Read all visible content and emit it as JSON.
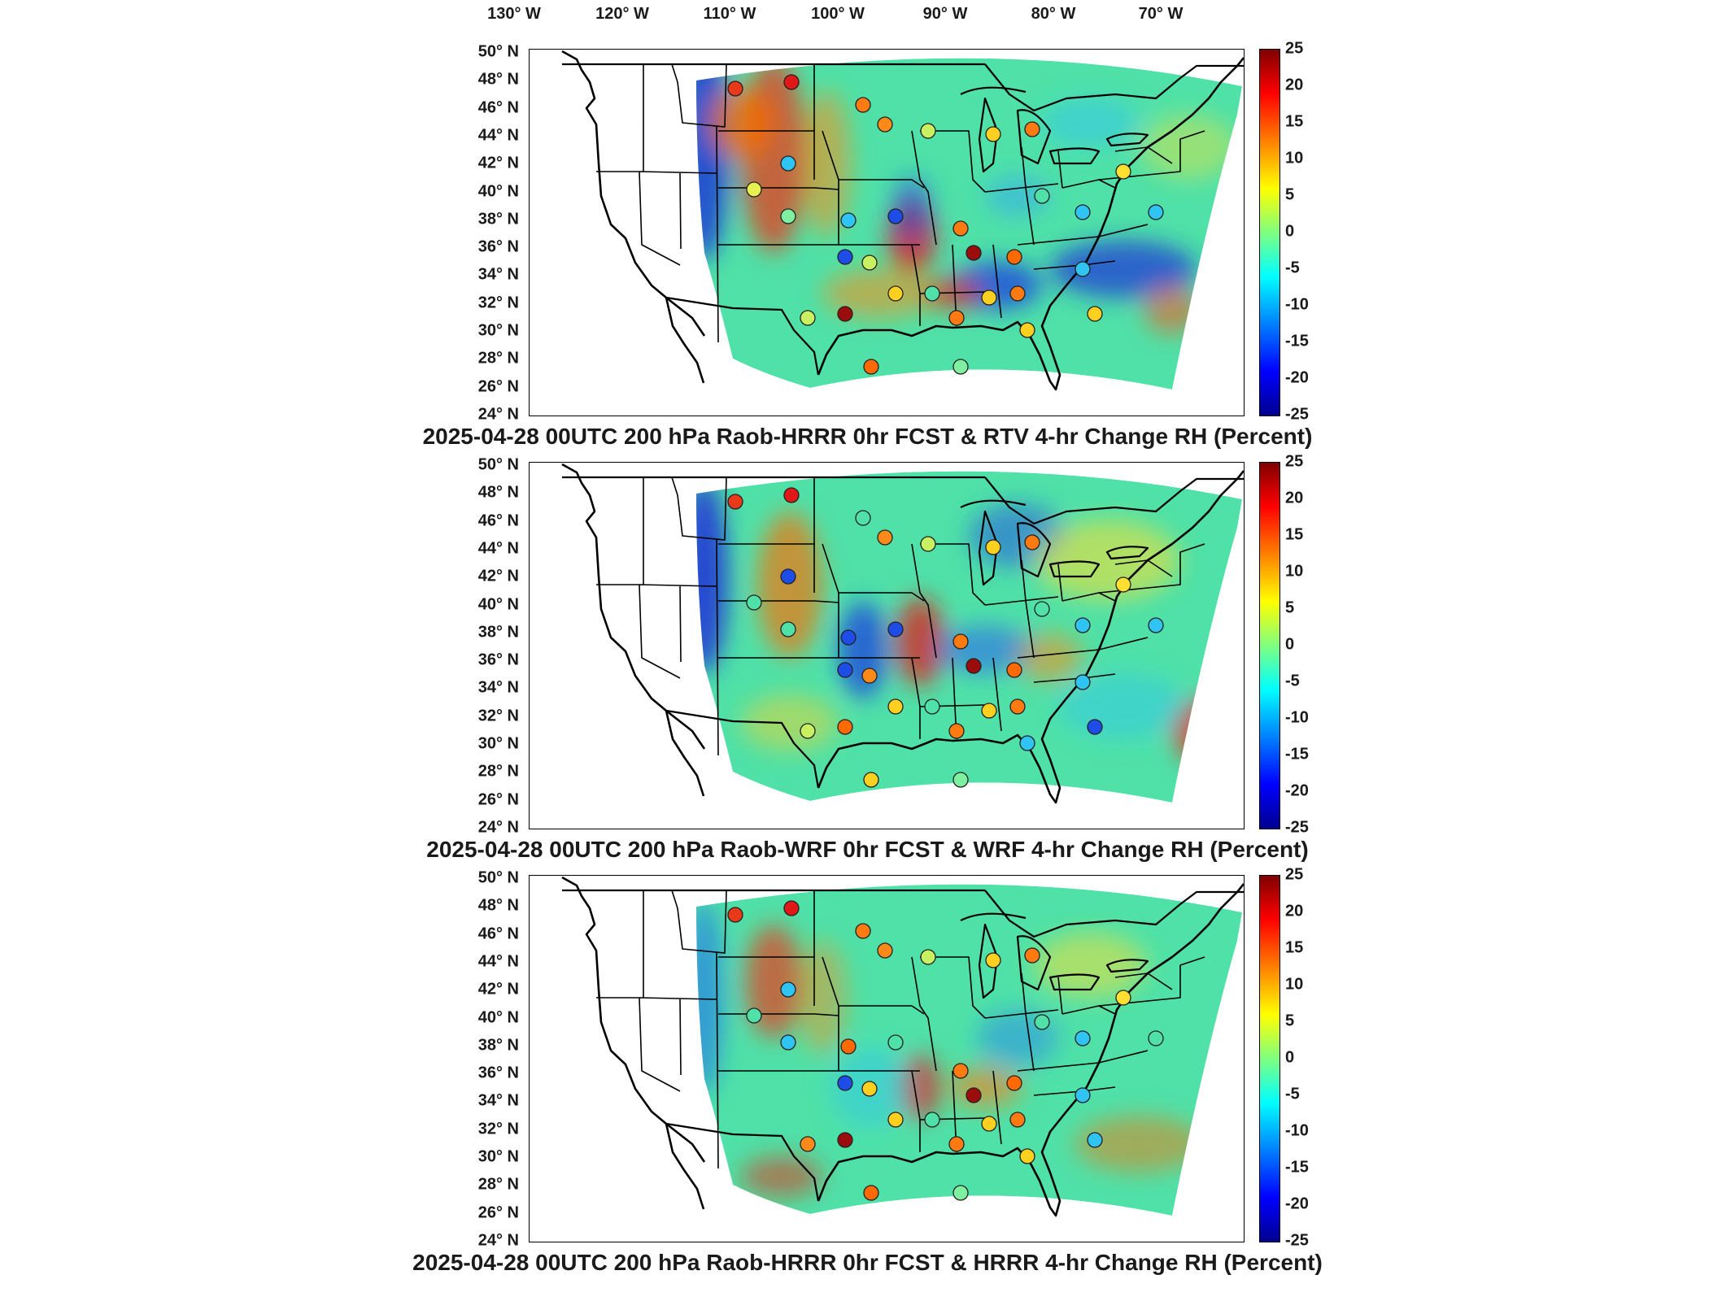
{
  "longitude_labels": [
    "130° W",
    "120° W",
    "110° W",
    "100° W",
    "90° W",
    "80° W",
    "70° W"
  ],
  "latitude_labels": [
    "50° N",
    "48° N",
    "46° N",
    "44° N",
    "42° N",
    "40° N",
    "38° N",
    "36° N",
    "34° N",
    "32° N",
    "30° N",
    "28° N",
    "26° N",
    "24° N"
  ],
  "colorbar": {
    "ticks": [
      "25",
      "20",
      "15",
      "10",
      "5",
      "0",
      "-5",
      "-10",
      "-15",
      "-20",
      "-25"
    ],
    "range": [
      -25,
      25
    ],
    "colormap": [
      "#800000",
      "#ff0000",
      "#ff8000",
      "#ffff00",
      "#80ff80",
      "#00ffff",
      "#0080ff",
      "#0000ff",
      "#00008f"
    ]
  },
  "panels": [
    {
      "title": "2025-04-28 00UTC 200 hPa Raob-HRRR 0hr FCST & RTV 4-hr Change RH (Percent)"
    },
    {
      "title": "2025-04-28 00UTC 200 hPa Raob-WRF 0hr FCST & WRF 4-hr Change RH (Percent)"
    },
    {
      "title": "2025-04-28 00UTC 200 hPa Raob-HRRR 0hr FCST & HRRR 4-hr Change RH (Percent)"
    }
  ]
}
